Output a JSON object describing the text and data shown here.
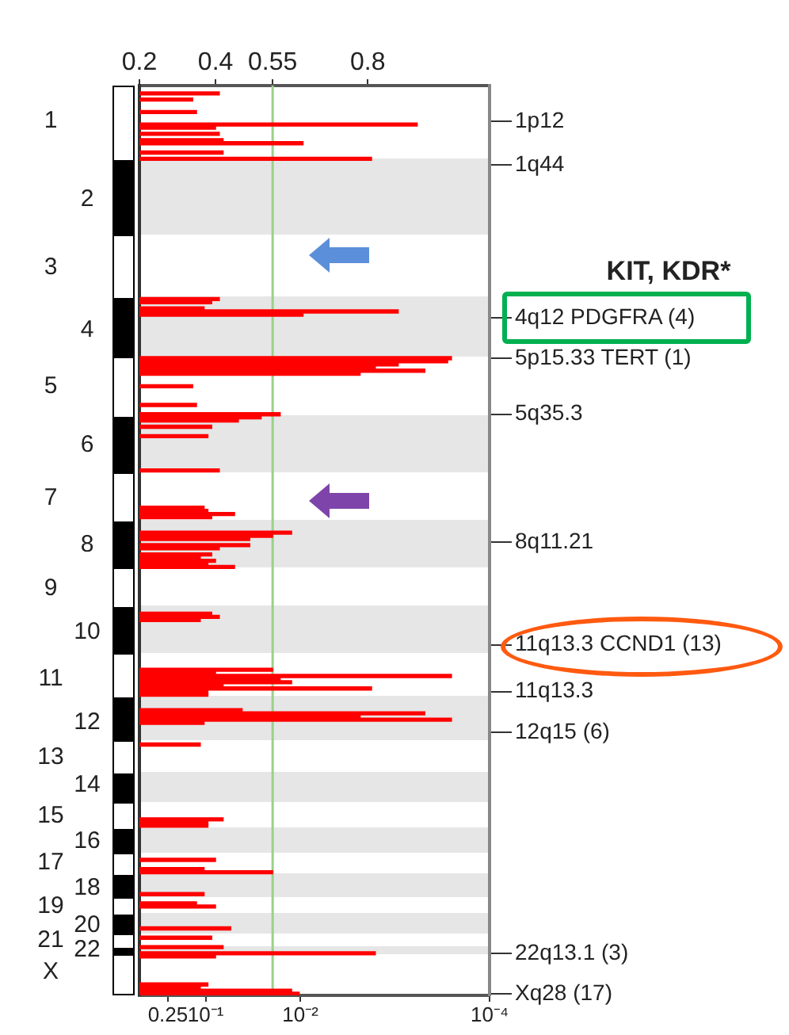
{
  "chart_data": {
    "type": "bar",
    "orientation": "horizontal",
    "annotations": [
      "KIT, KDR*"
    ],
    "categories": [
      null,
      null,
      null,
      null,
      null,
      null,
      null,
      null,
      null,
      null,
      null,
      "1",
      null,
      null,
      null,
      null,
      null,
      null,
      null,
      null,
      null,
      null,
      null,
      null,
      null,
      null,
      null,
      null,
      null,
      null,
      null,
      null,
      null,
      null,
      null,
      null,
      "2",
      null,
      null,
      null,
      null,
      null,
      null,
      null,
      null,
      null,
      null,
      null,
      null,
      null,
      null,
      null,
      null,
      null,
      null,
      null,
      null,
      null,
      "3",
      null,
      null,
      null,
      null,
      null,
      null,
      null,
      null,
      null,
      null,
      null,
      null,
      null,
      null,
      null,
      null,
      null,
      null,
      null,
      "4",
      null,
      null,
      null,
      null,
      null,
      null,
      null,
      null,
      null,
      null,
      null,
      null,
      null,
      null,
      null,
      null,
      null,
      "5",
      null,
      null,
      null,
      null,
      null,
      null,
      null,
      null,
      null,
      null,
      null,
      null,
      null,
      null,
      null,
      null,
      null,
      null,
      "6",
      null,
      null,
      null,
      null,
      null,
      null,
      null,
      null,
      null,
      null,
      null,
      null,
      null,
      null,
      null,
      null,
      "7",
      null,
      null,
      null,
      null,
      null,
      null,
      null,
      null,
      null,
      null,
      null,
      null,
      null,
      null,
      "8",
      null,
      null,
      null,
      null,
      null,
      null,
      null,
      null,
      null,
      null,
      null,
      null,
      null,
      "9",
      null,
      null,
      null,
      null,
      null,
      null,
      null,
      null,
      null,
      null,
      null,
      null,
      null,
      "10",
      null,
      null,
      null,
      null,
      null,
      null,
      null,
      null,
      null,
      null,
      null,
      null,
      null,
      null,
      "11",
      null,
      null,
      null,
      null,
      null,
      null,
      null,
      null,
      null,
      null,
      null,
      null,
      null,
      "12",
      null,
      null,
      null,
      null,
      null,
      null,
      null,
      null,
      null,
      null,
      "13",
      null,
      null,
      null,
      null,
      null,
      null,
      null,
      null,
      "14",
      null,
      null,
      null,
      null,
      null,
      null,
      null,
      null,
      null,
      "15",
      null,
      null,
      null,
      null,
      null,
      null,
      null,
      "16",
      null,
      null,
      null,
      null,
      null,
      null,
      "17",
      null,
      null,
      null,
      null,
      null,
      null,
      null,
      "18",
      null,
      null,
      null,
      null,
      null,
      "19",
      null,
      null,
      null,
      null,
      null,
      "20",
      null,
      null,
      null,
      null,
      "21",
      null,
      null,
      "22",
      null,
      null,
      null,
      null,
      null,
      null,
      "X",
      null,
      null,
      null,
      null,
      null,
      null,
      null
    ],
    "y2_categories": [
      null,
      null,
      null,
      null,
      null,
      null,
      null,
      null,
      null,
      null,
      null,
      "1p12",
      null,
      null,
      null,
      null,
      null,
      null,
      null,
      null,
      null,
      null,
      null,
      null,
      null,
      "1q44",
      null,
      null,
      null,
      null,
      null,
      null,
      null,
      null,
      null,
      null,
      null,
      null,
      null,
      null,
      null,
      null,
      null,
      null,
      null,
      null,
      null,
      null,
      null,
      null,
      null,
      null,
      null,
      null,
      null,
      null,
      null,
      null,
      null,
      null,
      null,
      null,
      null,
      null,
      null,
      null,
      null,
      null,
      null,
      null,
      null,
      null,
      null,
      null,
      "4q12 PDGFRA (4)",
      null,
      null,
      null,
      null,
      null,
      null,
      null,
      null,
      null,
      null,
      null,
      null,
      "5p15.33 TERT (1)",
      null,
      null,
      null,
      null,
      null,
      null,
      null,
      null,
      null,
      null,
      null,
      null,
      null,
      null,
      null,
      null,
      null,
      "5q35.3",
      null,
      null,
      null,
      null,
      null,
      null,
      null,
      null,
      null,
      null,
      null,
      null,
      null,
      null,
      null,
      null,
      null,
      null,
      null,
      null,
      null,
      null,
      null,
      null,
      null,
      null,
      null,
      null,
      null,
      null,
      null,
      null,
      null,
      null,
      null,
      null,
      null,
      null,
      null,
      null,
      "8q11.21",
      null,
      null,
      null,
      null,
      null,
      null,
      null,
      null,
      null,
      null,
      null,
      null,
      null,
      null,
      null,
      null,
      null,
      null,
      null,
      null,
      null,
      null,
      null,
      null,
      null,
      null,
      null,
      null,
      null,
      null,
      null,
      null,
      "11q13.3 CCND1 (13)",
      null,
      null,
      null,
      null,
      null,
      null,
      null,
      null,
      null,
      null,
      null,
      null,
      null,
      null,
      "11q13.3",
      null,
      null,
      null,
      null,
      null,
      null,
      null,
      null,
      null,
      null,
      null,
      null,
      "12q15 (6)",
      null,
      null,
      null,
      null,
      null,
      null,
      null,
      null,
      null,
      null,
      null,
      null,
      null,
      null,
      null,
      null,
      null,
      null,
      null,
      null,
      null,
      null,
      null,
      null,
      null,
      null,
      null,
      null,
      null,
      null,
      null,
      null,
      null,
      null,
      null,
      null,
      null,
      null,
      null,
      null,
      null,
      null,
      null,
      null,
      null,
      null,
      null,
      null,
      null,
      null,
      null,
      null,
      null,
      null,
      null,
      null,
      null,
      null,
      null,
      null,
      null,
      null,
      null,
      null,
      null,
      null,
      null,
      null,
      null,
      null,
      "22q13.1 (3)",
      null,
      null,
      null,
      null,
      null,
      null,
      null,
      null,
      null,
      null,
      null,
      null,
      "Xq28 (17)"
    ],
    "series": [
      {
        "color": "#ff0000",
        "axis": "x2",
        "values": [
          null,
          null,
          0.41,
          null,
          0.34,
          null,
          null,
          null,
          0.35,
          null,
          null,
          null,
          0.93,
          0.4,
          null,
          0.41,
          null,
          0.42,
          0.63,
          null,
          null,
          0.42,
          null,
          0.81,
          null,
          null,
          null,
          null,
          null,
          null,
          null,
          null,
          null,
          null,
          null,
          null,
          null,
          null,
          null,
          null,
          null,
          null,
          null,
          null,
          null,
          null,
          null,
          null,
          null,
          null,
          null,
          null,
          null,
          null,
          null,
          null,
          null,
          null,
          null,
          null,
          null,
          null,
          null,
          null,
          null,
          null,
          null,
          null,
          0.41,
          0.39,
          null,
          0.37,
          0.88,
          0.63,
          null,
          null,
          null,
          null,
          null,
          null,
          null,
          null,
          null,
          null,
          null,
          null,
          null,
          1.02,
          1.01,
          0.88,
          0.82,
          0.95,
          0.78,
          null,
          null,
          null,
          0.34,
          null,
          null,
          null,
          null,
          null,
          0.35,
          null,
          null,
          0.57,
          0.52,
          0.46,
          null,
          0.39,
          null,
          null,
          0.38,
          null,
          null,
          null,
          null,
          null,
          null,
          null,
          null,
          null,
          null,
          0.41,
          null,
          null,
          null,
          null,
          null,
          null,
          null,
          null,
          null,
          null,
          null,
          0.37,
          0.38,
          0.45,
          0.39,
          null,
          null,
          null,
          null,
          0.6,
          0.55,
          0.49,
          null,
          0.49,
          0.41,
          null,
          0.39,
          0.36,
          0.4,
          0.38,
          0.45,
          null,
          null,
          null,
          null,
          null,
          null,
          null,
          null,
          null,
          null,
          null,
          null,
          null,
          null,
          0.39,
          0.41,
          0.36,
          null,
          null,
          null,
          null,
          null,
          null,
          null,
          null,
          null,
          null,
          null,
          null,
          null,
          null,
          null,
          0.55,
          0.4,
          1.02,
          0.57,
          0.6,
          0.42,
          0.81,
          0.38,
          0.38,
          null,
          null,
          null,
          null,
          0.47,
          0.95,
          0.78,
          1.02,
          0.37,
          null,
          null,
          null,
          null,
          null,
          null,
          0.36,
          null,
          null,
          null,
          null,
          null,
          null,
          null,
          null,
          null,
          null,
          null,
          null,
          null,
          null,
          null,
          null,
          null,
          null,
          null,
          null,
          null,
          null,
          null,
          0.42,
          0.38,
          0.38,
          null,
          null,
          null,
          null,
          null,
          null,
          null,
          null,
          null,
          null,
          0.4,
          null,
          null,
          0.37,
          0.55,
          null,
          null,
          null,
          null,
          null,
          null,
          0.37,
          null,
          null,
          0.35,
          0.4,
          null,
          null,
          null,
          null,
          null,
          null,
          0.44,
          null,
          null,
          0.39,
          null,
          null,
          0.42,
          null,
          0.82,
          0.4,
          null,
          null,
          null,
          null,
          null,
          null,
          null,
          null,
          0.38,
          0.36,
          0.6,
          0.62
        ]
      }
    ],
    "log": "x",
    "xlim": [
      0.5,
      0.0001
    ],
    "xticks": [
      0.25,
      {
        "value": 0.1,
        "label": "10⁻¹"
      },
      {
        "value": 0.01,
        "label": "10⁻²"
      },
      {
        "value": 0.0001,
        "label": "10⁻⁴"
      }
    ],
    "x2lim": [
      0.2,
      1.12
    ],
    "x2ticks": [
      0.2,
      0.4,
      0.55,
      0.8
    ],
    "ref_lines": [
      {
        "axis": "x2",
        "value": 0.55,
        "color": "#99d18a"
      }
    ]
  }
}
